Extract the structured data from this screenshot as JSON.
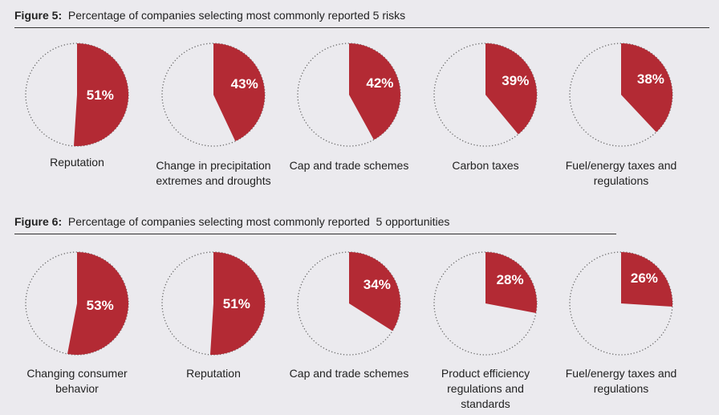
{
  "colors": {
    "slice": "#b32a34",
    "outline": "#666666",
    "background": "#ebeaee"
  },
  "chart_data": [
    {
      "type": "pie",
      "figure_label": "Figure 5:",
      "title": "Percentage of companies selecting most commonly reported 5 risks",
      "categories": [
        "Reputation",
        "Change in precipitation extremes and droughts",
        "Cap and trade schemes",
        "Carbon taxes",
        "Fuel/energy taxes and regulations"
      ],
      "values": [
        51,
        43,
        42,
        39,
        38
      ],
      "value_labels": [
        "51%",
        "43%",
        "42%",
        "39%",
        "38%"
      ],
      "unit": "%"
    },
    {
      "type": "pie",
      "figure_label": "Figure 6:",
      "title": "Percentage of companies selecting most commonly reported  5 opportunities",
      "categories": [
        "Changing consumer behavior",
        "Reputation",
        "Cap and trade schemes",
        "Product efficiency regulations and standards",
        "Fuel/energy taxes and regulations"
      ],
      "values": [
        53,
        51,
        34,
        28,
        26
      ],
      "value_labels": [
        "53%",
        "51%",
        "34%",
        "28%",
        "26%"
      ],
      "unit": "%"
    }
  ]
}
